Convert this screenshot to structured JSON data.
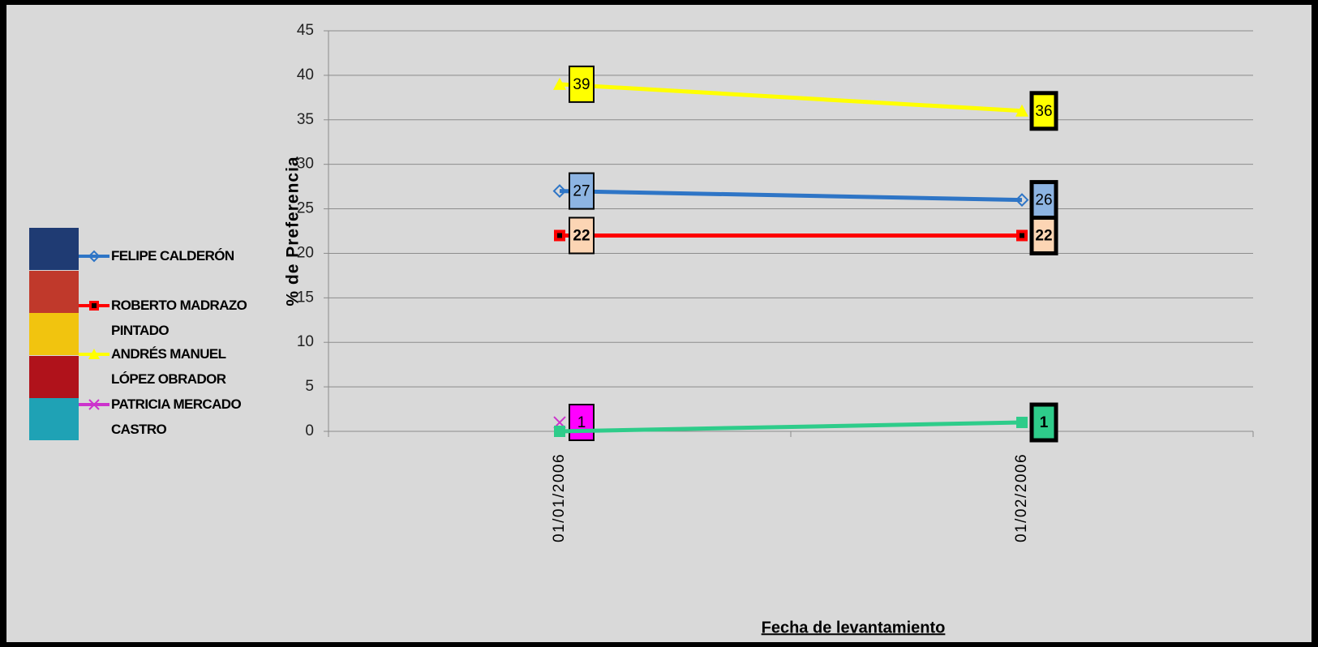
{
  "chart_data": {
    "type": "line",
    "y_label": "% de Preferencia",
    "x_label": "Fecha de levantamiento",
    "categories": [
      "01/01/2006",
      "01/02/2006"
    ],
    "ylim": [
      0,
      45
    ],
    "yticks": [
      0,
      5,
      10,
      15,
      20,
      25,
      30,
      35,
      40,
      45
    ],
    "grid": true,
    "legend": "left",
    "series": [
      {
        "name": "FELIPE CALDERÓN",
        "color": "#2e75c6",
        "marker": "diamond",
        "label_color": "#8db4e2",
        "values": [
          27,
          26
        ],
        "show_labels": [
          true,
          true
        ]
      },
      {
        "name": "ROBERTO MADRAZO PINTADO",
        "color": "#ff0000",
        "marker": "square",
        "label_color": "#fcd5b4",
        "values": [
          22,
          22
        ],
        "show_labels": [
          true,
          true
        ]
      },
      {
        "name": "ANDRÉS MANUEL LÓPEZ OBRADOR",
        "color": "#ffff00",
        "marker": "triangle",
        "label_color": "#ffff00",
        "values": [
          39,
          36
        ],
        "show_labels": [
          true,
          true
        ]
      },
      {
        "name": "PATRICIA MERCADO CASTRO",
        "color": "#cc33cc",
        "marker": "x",
        "label_color": "#ff00ff",
        "values": [
          1,
          null
        ],
        "show_labels": [
          true,
          false
        ]
      },
      {
        "color": "#2ecc8a",
        "marker": "square",
        "label_color": "#2ecc8a",
        "values": [
          0,
          1
        ],
        "show_labels": [
          false,
          true
        ]
      }
    ]
  }
}
